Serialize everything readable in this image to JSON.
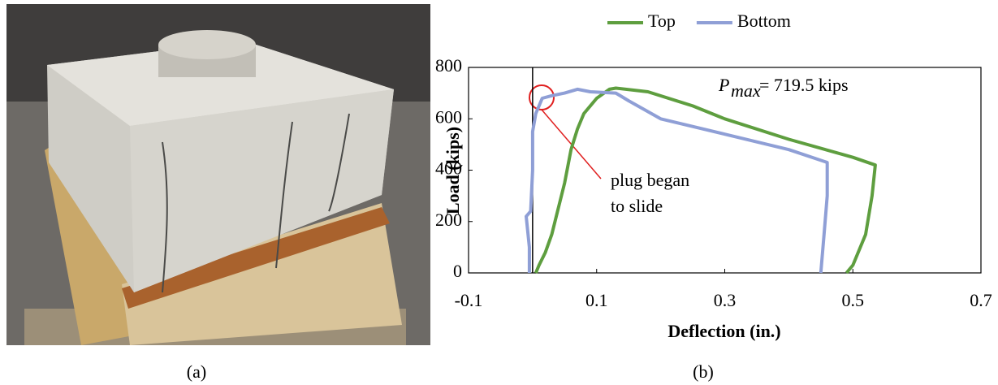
{
  "captions": [
    "(a)",
    "(b)"
  ],
  "chart_data": {
    "type": "line",
    "x_label": "Deflection (in.)",
    "y_label": "Load (kips)",
    "xlim": [
      -0.1,
      0.7
    ],
    "xticks": [
      -0.1,
      0.1,
      0.3,
      0.5,
      0.7
    ],
    "ylim": [
      0,
      800
    ],
    "yticks": [
      0,
      200,
      400,
      600,
      800
    ],
    "legend": "top",
    "series": [
      {
        "name": "Top",
        "color": "#5e9e3f",
        "x": [
          0.005,
          0.01,
          0.02,
          0.03,
          0.04,
          0.05,
          0.06,
          0.07,
          0.08,
          0.1,
          0.12,
          0.13,
          0.18,
          0.25,
          0.3,
          0.4,
          0.5,
          0.535,
          0.53,
          0.52,
          0.5,
          0.49
        ],
        "values": [
          0,
          30,
          80,
          150,
          250,
          350,
          480,
          560,
          620,
          680,
          715,
          719.5,
          705,
          650,
          600,
          520,
          450,
          420,
          300,
          150,
          30,
          0
        ]
      },
      {
        "name": "Bottom",
        "color": "#8f9fd6",
        "x": [
          -0.005,
          -0.005,
          -0.01,
          -0.003,
          0,
          0,
          0.005,
          0.015,
          0.03,
          0.05,
          0.07,
          0.09,
          0.13,
          0.15,
          0.2,
          0.3,
          0.4,
          0.46,
          0.46,
          0.455,
          0.45
        ],
        "values": [
          0,
          100,
          220,
          240,
          400,
          550,
          620,
          680,
          690,
          700,
          715,
          705,
          700,
          670,
          600,
          540,
          480,
          430,
          300,
          150,
          0
        ]
      }
    ],
    "pmax_annotation": {
      "symbol": "P",
      "subscript": "max",
      "text": "= 719.5 kips"
    },
    "slide_annotation": [
      "plug began",
      "to slide"
    ]
  }
}
